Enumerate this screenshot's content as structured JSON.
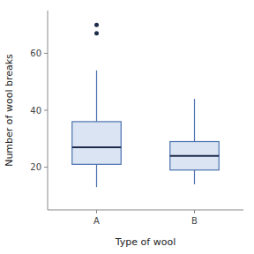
{
  "chart_data": {
    "type": "box",
    "title": "",
    "xlabel": "Type of wool",
    "ylabel": "Number of wool breaks",
    "categories": [
      "A",
      "B"
    ],
    "boxes": [
      {
        "whislo": 13,
        "q1": 21,
        "med": 27,
        "q3": 36,
        "whishi": 54,
        "fliers": [
          70,
          67
        ]
      },
      {
        "whislo": 14,
        "q1": 19,
        "med": 24,
        "q3": 29,
        "whishi": 44,
        "fliers": []
      }
    ],
    "ylim": [
      5,
      75
    ],
    "yticks": [
      20,
      40,
      60
    ],
    "grid": false
  }
}
